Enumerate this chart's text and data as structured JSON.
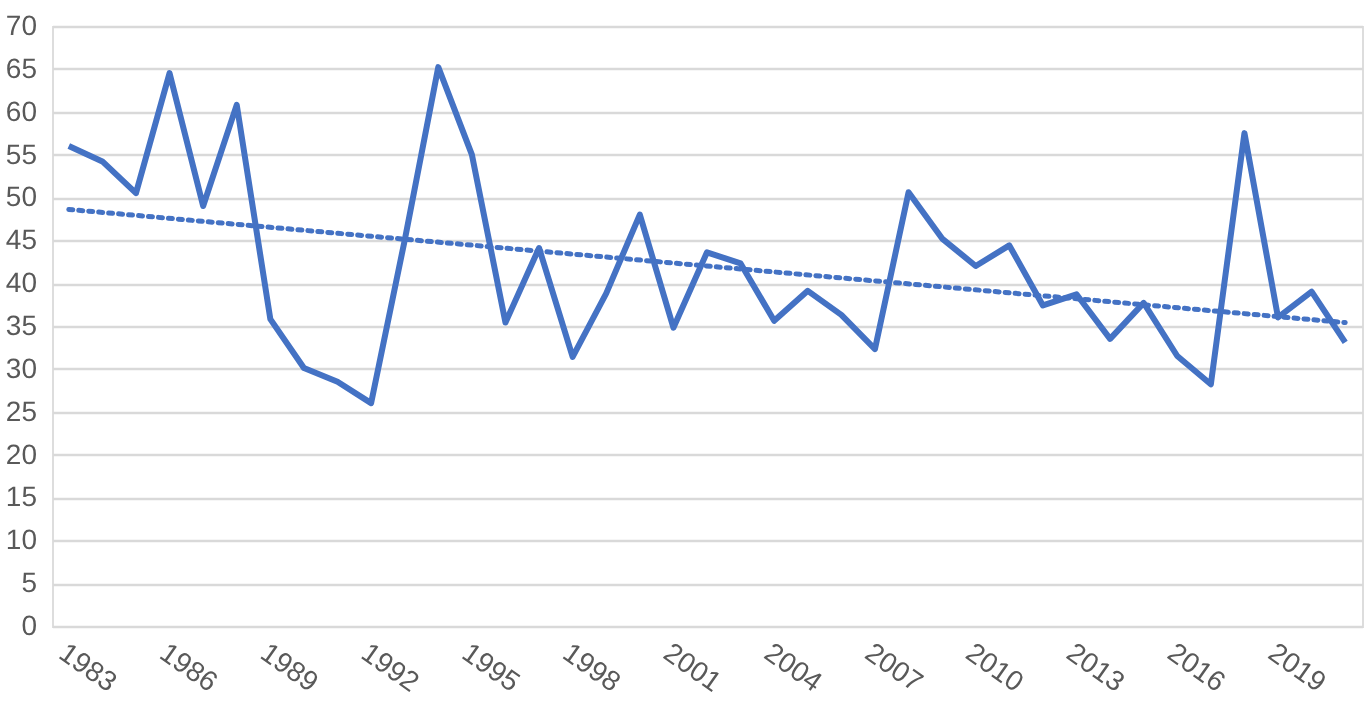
{
  "chart_data": {
    "type": "line",
    "x": [
      1983,
      1984,
      1985,
      1986,
      1987,
      1988,
      1989,
      1990,
      1991,
      1992,
      1993,
      1994,
      1995,
      1996,
      1997,
      1998,
      1999,
      2000,
      2001,
      2002,
      2003,
      2004,
      2005,
      2006,
      2007,
      2008,
      2009,
      2010,
      2011,
      2012,
      2013,
      2014,
      2015,
      2016,
      2017,
      2018,
      2019,
      2020,
      2021
    ],
    "series": [
      {
        "type": "line",
        "color": "#4472c4",
        "line_style": "solid",
        "values": [
          56,
          54.2,
          50.5,
          64.5,
          49,
          60.8,
          35.8,
          30.1,
          28.5,
          26,
          45,
          65.2,
          55,
          35.4,
          44.1,
          31.4,
          38.8,
          48,
          34.8,
          43.6,
          42.3,
          35.6,
          39.1,
          36.3,
          32.3,
          50.6,
          45.2,
          42,
          44.4,
          37.4,
          38.7,
          33.5,
          37.7,
          31.5,
          28.2,
          57.5,
          36,
          39,
          33.1
        ]
      },
      {
        "type": "line",
        "color": "#4472c4",
        "line_style": "dotted",
        "x": [
          1983,
          2021
        ],
        "values": [
          48.6,
          35.4
        ]
      }
    ],
    "xlim": [
      1982.5,
      2021.5
    ],
    "xticks": [
      1983,
      1986,
      1989,
      1992,
      1995,
      1998,
      2001,
      2004,
      2007,
      2010,
      2013,
      2016,
      2019
    ],
    "ylim": [
      0,
      70
    ],
    "yticks": [
      0,
      5,
      10,
      15,
      20,
      25,
      30,
      35,
      40,
      45,
      50,
      55,
      60,
      65,
      70
    ],
    "grid": "y",
    "legend": false,
    "marker": "none"
  }
}
